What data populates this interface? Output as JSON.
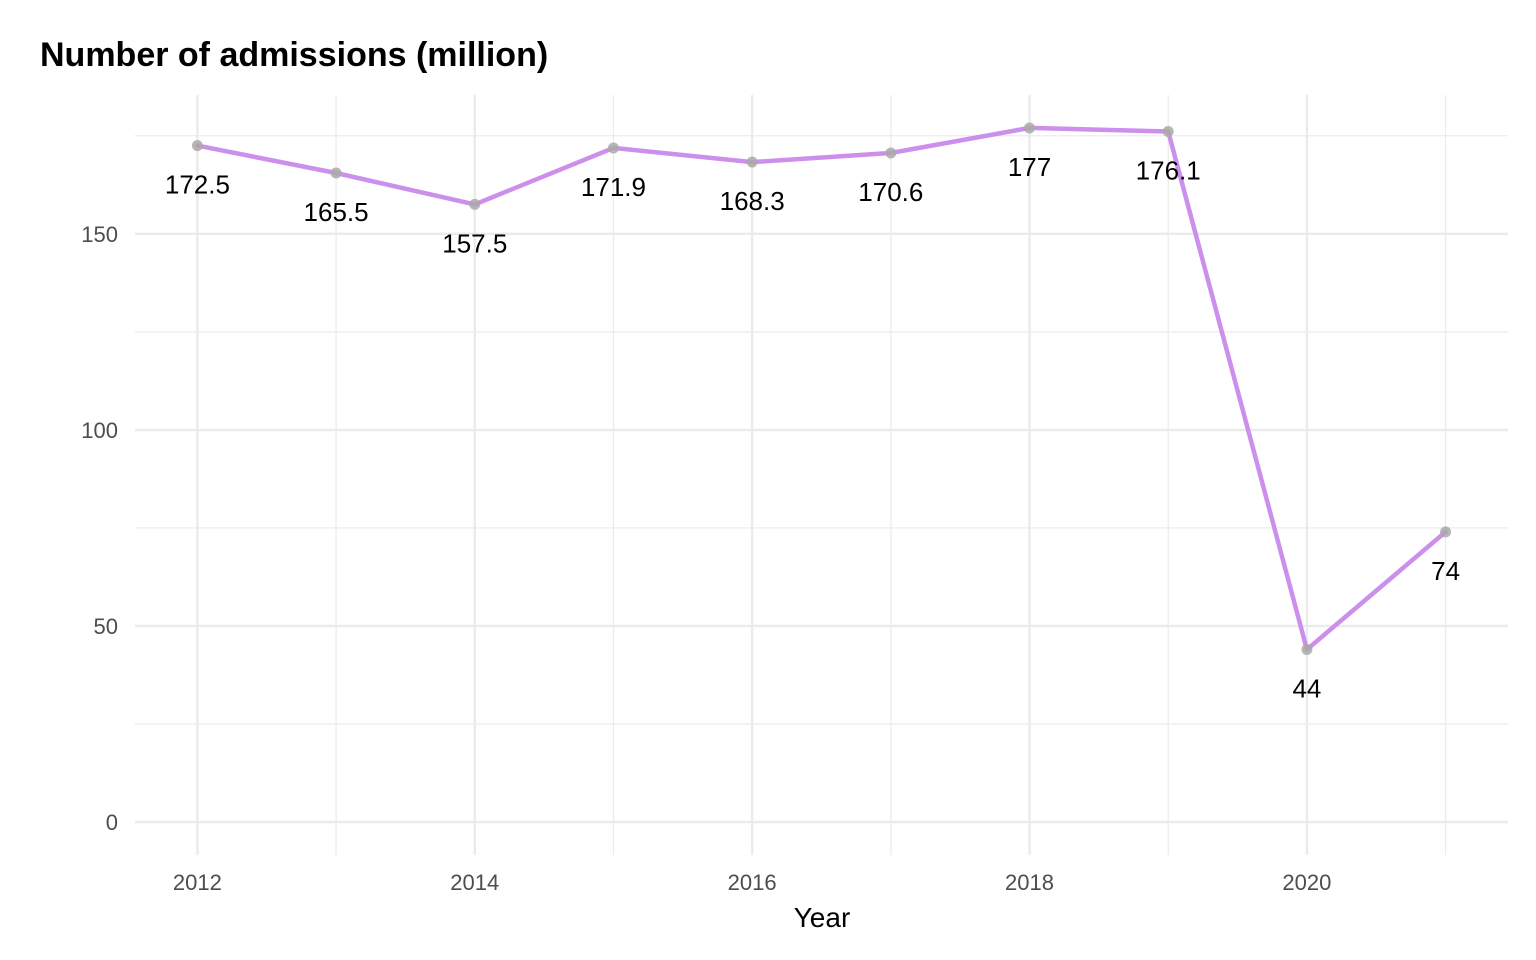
{
  "chart_data": {
    "type": "line",
    "title": "Number of admissions (million)",
    "xlabel": "Year",
    "ylabel": "",
    "x": [
      2012,
      2013,
      2014,
      2015,
      2016,
      2017,
      2018,
      2019,
      2020,
      2021
    ],
    "series": [
      {
        "values": [
          172.5,
          165.5,
          157.5,
          171.9,
          168.3,
          170.6,
          177,
          176.1,
          44,
          74
        ],
        "labels": [
          "172.5",
          "165.5",
          "157.5",
          "171.9",
          "168.3",
          "170.6",
          "177",
          "176.1",
          "44",
          "74"
        ]
      }
    ],
    "xticks": [
      2012,
      2014,
      2016,
      2018,
      2020
    ],
    "xtick_labels": [
      "2012",
      "2014",
      "2016",
      "2018",
      "2020"
    ],
    "yticks": [
      0,
      50,
      100,
      150
    ],
    "ytick_labels": [
      "0",
      "50",
      "100",
      "150"
    ],
    "xlim": [
      2011.55,
      2021.45
    ],
    "ylim": [
      -8.4,
      185.4
    ],
    "grid": true,
    "legend": "none",
    "colors": {
      "line": "#cc8fec",
      "point": "#a9a9a9",
      "grid": "#ebebeb"
    }
  }
}
